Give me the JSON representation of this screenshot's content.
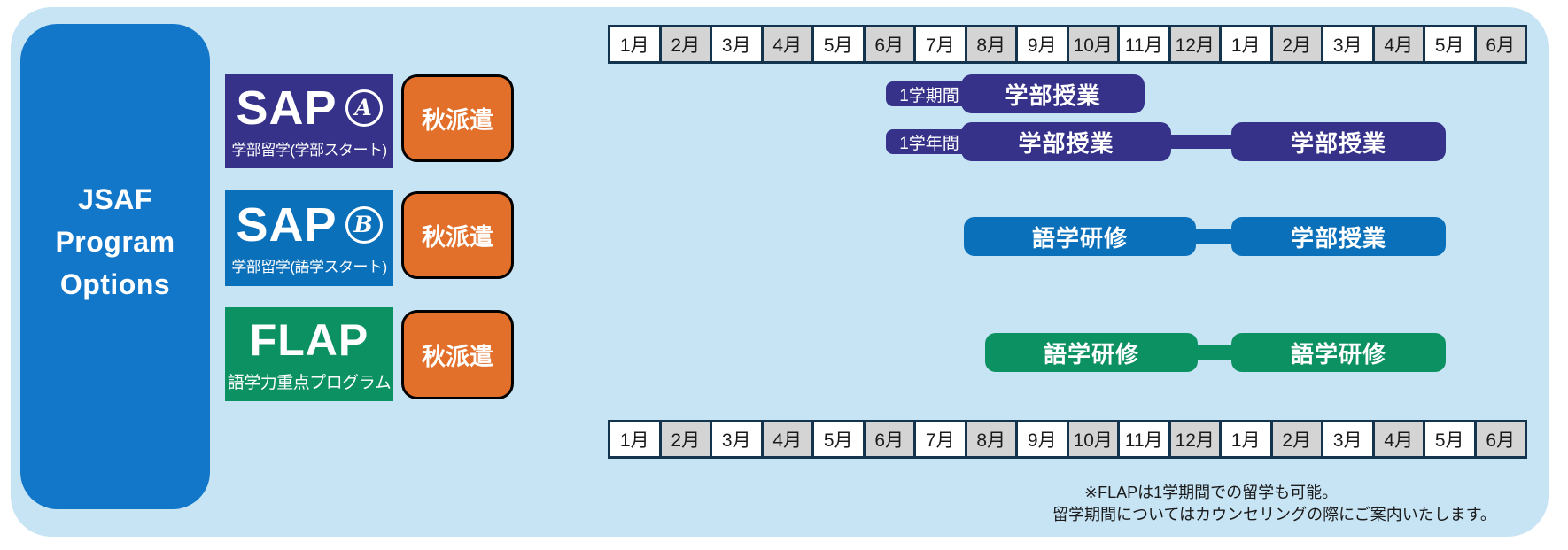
{
  "jsaf_box": {
    "lines": [
      "JSAF",
      "Program",
      "Options"
    ]
  },
  "programs": [
    {
      "title": "SAP",
      "badge": "A",
      "subtitle": "学部留学(学部スタート)",
      "dispatch": "秋派遣"
    },
    {
      "title": "SAP",
      "badge": "B",
      "subtitle": "学部留学(語学スタート)",
      "dispatch": "秋派遣"
    },
    {
      "title": "FLAP",
      "badge": "",
      "subtitle": "語学力重点プログラム",
      "dispatch": "秋派遣"
    }
  ],
  "months": [
    "1月",
    "2月",
    "3月",
    "4月",
    "5月",
    "6月",
    "7月",
    "8月",
    "9月",
    "10月",
    "11月",
    "12月",
    "1月",
    "2月",
    "3月",
    "4月",
    "5月",
    "6月"
  ],
  "timeline": {
    "rows": [
      {
        "period_label": "1学期間",
        "segments": [
          "学部授業"
        ]
      },
      {
        "period_label": "1学年間",
        "segments": [
          "学部授業",
          "学部授業"
        ]
      },
      {
        "period_label": "",
        "segments": [
          "語学研修",
          "学部授業"
        ]
      },
      {
        "period_label": "",
        "segments": [
          "語学研修",
          "語学研修"
        ]
      }
    ]
  },
  "footnote": {
    "line1": "※FLAPは1学期間での留学も可能。",
    "line2": "留学期間についてはカウンセリングの際にご案内いたします。"
  },
  "colors": {
    "panel_bg": "#c7e4f4",
    "jsaf_blue": "#1277c9",
    "sap_a_navy": "#363189",
    "sap_b_blue": "#0b70ba",
    "flap_green": "#0c9162",
    "dispatch_orange": "#e2702b",
    "month_grid_navy": "#14344e",
    "month_white": "#ffffff",
    "month_alt_gray": "#d4d4d4",
    "text_dark": "#1a1a1a"
  }
}
